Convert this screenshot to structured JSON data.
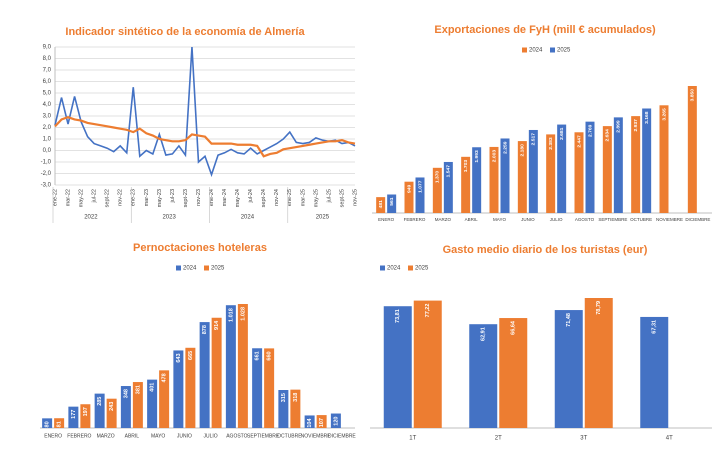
{
  "chart_data": [
    {
      "type": "line",
      "title": "Indicador sintético de la economía de Almería",
      "categories": [
        "ene-22",
        null,
        "mar-22",
        null,
        "may-22",
        null,
        "jul-22",
        null,
        "sept-22",
        null,
        "nov-22",
        null,
        "ene-23",
        null,
        "mar-23",
        null,
        "may-23",
        null,
        "jul-23",
        null,
        "sept-23",
        null,
        "nov-23",
        null,
        "ene-24",
        null,
        "mar-24",
        null,
        "may-24",
        null,
        "jul-24",
        null,
        "sept-24",
        null,
        "nov-24",
        null,
        "ene-25",
        null,
        "mar-25",
        null,
        "may-25",
        null,
        "jul-25",
        null,
        "sept-25",
        null,
        "nov-25"
      ],
      "years": [
        "2022",
        "2023",
        "2024",
        "2025"
      ],
      "series": [
        {
          "color": "#4472c4",
          "values": [
            2.2,
            4.6,
            2.3,
            4.7,
            2.5,
            1.2,
            0.6,
            0.4,
            0.2,
            -0.1,
            0.4,
            -0.2,
            5.5,
            -0.5,
            0.0,
            -0.3,
            1.4,
            -0.4,
            -0.3,
            0.4,
            -0.4,
            9.0,
            -1.0,
            -0.5,
            -2.1,
            -0.4,
            -0.2,
            0.1,
            -0.2,
            -0.3,
            0.2,
            -0.3,
            0.0,
            0.3,
            0.6,
            1.0,
            1.6,
            0.7,
            0.6,
            0.7,
            1.1,
            0.9,
            0.8,
            0.9,
            0.6,
            0.7,
            0.4
          ]
        },
        {
          "color": "#ed7d31",
          "values": [
            2.1,
            2.7,
            2.9,
            2.7,
            2.6,
            2.4,
            2.3,
            2.2,
            2.1,
            2.0,
            1.9,
            1.8,
            1.6,
            1.9,
            1.5,
            1.3,
            1.0,
            0.9,
            0.8,
            0.8,
            0.9,
            1.4,
            1.3,
            1.2,
            0.6,
            0.6,
            0.6,
            0.6,
            0.5,
            0.5,
            0.5,
            0.4,
            -0.5,
            -0.3,
            -0.2,
            0.1,
            0.2,
            0.3,
            0.4,
            0.5,
            0.6,
            0.7,
            0.8,
            0.8,
            0.9,
            0.7,
            0.6
          ]
        }
      ],
      "ylim": [
        -3,
        9
      ],
      "yticks": [
        {
          "value": -3,
          "label": "-3,0"
        },
        {
          "value": -2,
          "label": "-2,0"
        },
        {
          "value": -1,
          "label": "-1,0"
        },
        {
          "value": 0,
          "label": "0,0"
        },
        {
          "value": 1,
          "label": "1,0"
        },
        {
          "value": 2,
          "label": "2,0"
        },
        {
          "value": 3,
          "label": "3,0"
        },
        {
          "value": 4,
          "label": "4,0"
        },
        {
          "value": 5,
          "label": "5,0"
        },
        {
          "value": 6,
          "label": "6,0"
        },
        {
          "value": 7,
          "label": "7,0"
        },
        {
          "value": 8,
          "label": "8,0"
        },
        {
          "value": 9,
          "label": "9,0"
        }
      ],
      "grid": true
    },
    {
      "type": "bar",
      "title": "Exportaciones de FyH (mill € acumulados)",
      "categories": [
        "ENERO",
        "FEBRERO",
        "MARZO",
        "ABRIL",
        "MAYO",
        "JUNIO",
        "JULIO",
        "AGOSTO",
        "SEPTIEMBRE",
        "OCTUBRE",
        "NOVIEMBRE",
        "DICIEMBRE"
      ],
      "series": [
        {
          "name": "2024",
          "color": "#ed7d31",
          "values": [
            481,
            949,
            1370,
            1703,
            2003,
            2180,
            2383,
            2447,
            2634,
            2937,
            3265,
            3850
          ],
          "value_labels": [
            "481",
            "949",
            "1.370",
            "1.703",
            "2.003",
            "2.180",
            "2.383",
            "2.447",
            "2.634",
            "2.937",
            "3.265",
            "3.850"
          ]
        },
        {
          "name": "2025",
          "color": "#4472c4",
          "values": [
            561,
            1077,
            1547,
            1993,
            2259,
            2517,
            2681,
            2769,
            2899,
            3168,
            null,
            null
          ],
          "value_labels": [
            "561",
            "1.077",
            "1.547",
            "1.993",
            "2.259",
            "2.517",
            "2.681",
            "2.769",
            "2.899",
            "3.168",
            null,
            null
          ]
        }
      ],
      "legend": "top-right"
    },
    {
      "type": "bar",
      "title": "Pernoctaciones hoteleras",
      "categories": [
        "ENERO",
        "FEBRERO",
        "MARZO",
        "ABRIL",
        "MAYO",
        "JUNIO",
        "JULIO",
        "AGOSTO",
        "SEPTIEMBRE",
        "OCTUBRE",
        "NOVIEMBRE",
        "DICIEMBRE"
      ],
      "series": [
        {
          "name": "2024",
          "color": "#4472c4",
          "values": [
            80,
            177,
            285,
            348,
            401,
            643,
            878,
            1018,
            661,
            315,
            104,
            120
          ],
          "value_labels": [
            "80",
            "177",
            "285",
            "348",
            "401",
            "643",
            "878",
            "1.018",
            "661",
            "315",
            "104",
            "120"
          ]
        },
        {
          "name": "2025",
          "color": "#ed7d31",
          "values": [
            81,
            197,
            243,
            381,
            478,
            665,
            914,
            1028,
            660,
            318,
            107,
            null
          ],
          "value_labels": [
            "81",
            "197",
            "243",
            "381",
            "478",
            "665",
            "914",
            "1.028",
            "660",
            "318",
            "107",
            null
          ]
        }
      ],
      "legend": "top-left"
    },
    {
      "type": "bar",
      "title": "Gasto medio diario de los turistas (eur)",
      "categories": [
        "1T",
        "2T",
        "3T",
        "4T"
      ],
      "series": [
        {
          "name": "2024",
          "color": "#4472c4",
          "values": [
            73.81,
            62.91,
            71.48,
            67.31
          ],
          "value_labels": [
            "73,81",
            "62,91",
            "71,48",
            "67,31"
          ]
        },
        {
          "name": "2025",
          "color": "#ed7d31",
          "values": [
            77.22,
            66.64,
            78.79,
            null
          ],
          "value_labels": [
            "77,22",
            "66,64",
            "78,79",
            null
          ]
        }
      ],
      "legend": "top-left"
    }
  ]
}
